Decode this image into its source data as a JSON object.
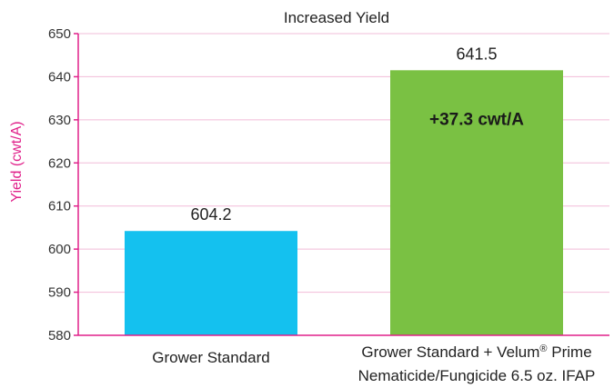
{
  "chart_data": {
    "type": "bar",
    "title": "Increased Yield",
    "ylabel": "Yield (cwt/A)",
    "xlabel": "",
    "ylim": [
      580,
      650
    ],
    "yticks": [
      580,
      590,
      600,
      610,
      620,
      630,
      640,
      650
    ],
    "grid": true,
    "categories": [
      {
        "line1": "Grower Standard",
        "line2": "",
        "trademark": ""
      },
      {
        "line1": "Grower Standard + Velum",
        "trademark": "®",
        "line1_suffix": " Prime",
        "line2": "Nematicide/Fungicide 6.5 oz. IFAP"
      }
    ],
    "values": [
      604.2,
      641.5
    ],
    "value_labels": [
      "604.2",
      "641.5"
    ],
    "annotation": "+37.3 cwt/A",
    "colors": {
      "bars": [
        "#14c1ef",
        "#7ac143"
      ],
      "axis": "#e0218a",
      "grid": "#f2bcd8",
      "ylabel": "#e0218a"
    }
  }
}
